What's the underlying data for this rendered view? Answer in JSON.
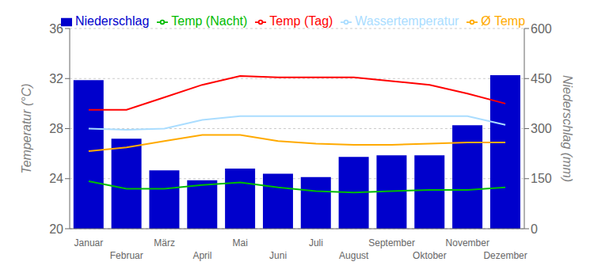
{
  "chart_data": {
    "type": "bar",
    "categories": [
      "Januar",
      "Februar",
      "März",
      "April",
      "Mai",
      "Juni",
      "Juli",
      "August",
      "September",
      "Oktober",
      "November",
      "Dezember"
    ],
    "series": [
      {
        "name": "Niederschlag",
        "type": "bar",
        "axis": "y2",
        "color": "#0000cc",
        "values": [
          445,
          270,
          175,
          145,
          180,
          165,
          155,
          215,
          220,
          220,
          310,
          460
        ]
      },
      {
        "name": "Wassertemperatur",
        "type": "line",
        "color": "#aaddff",
        "values": [
          28.0,
          27.9,
          28.0,
          28.7,
          29.0,
          29.0,
          29.0,
          29.0,
          29.0,
          29.0,
          29.0,
          28.3
        ]
      },
      {
        "name": "Temp (Tag)",
        "type": "line",
        "color": "#ff0000",
        "values": [
          29.5,
          29.5,
          30.5,
          31.5,
          32.2,
          32.1,
          32.1,
          32.1,
          31.8,
          31.5,
          30.8,
          30.0
        ]
      },
      {
        "name": "Ø Temp",
        "type": "line",
        "color": "#ffaa00",
        "values": [
          26.2,
          26.5,
          27.0,
          27.5,
          27.5,
          27.0,
          26.8,
          26.7,
          26.7,
          26.8,
          26.9,
          26.9
        ]
      },
      {
        "name": "Temp (Nacht)",
        "type": "line",
        "color": "#00bb00",
        "values": [
          23.8,
          23.2,
          23.2,
          23.5,
          23.7,
          23.3,
          23.0,
          22.9,
          23.0,
          23.1,
          23.1,
          23.3
        ]
      }
    ],
    "ylabel": "Temperatur (°C)",
    "y2label": "Niederschlag (mm)",
    "ylim": [
      20,
      36
    ],
    "yticks": [
      20,
      24,
      28,
      32,
      36
    ],
    "y2lim": [
      0,
      600
    ],
    "y2ticks": [
      0,
      150,
      300,
      450,
      600
    ],
    "grid": true,
    "legend": "top"
  }
}
